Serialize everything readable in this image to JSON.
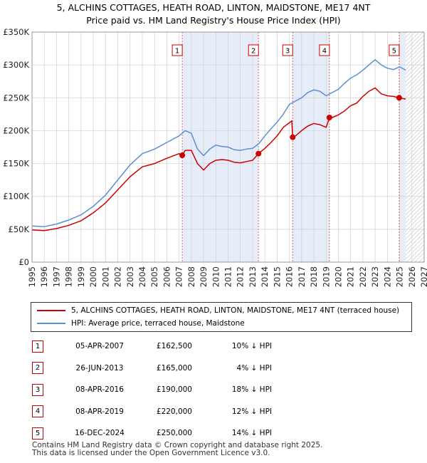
{
  "title_line1": "5, ALCHINS COTTAGES, HEATH ROAD, LINTON, MAIDSTONE, ME17 4NT",
  "title_line2": "Price paid vs. HM Land Registry's House Price Index (HPI)",
  "colors": {
    "property": "#cc0000",
    "hpi": "#5b8fd0",
    "shade": "#e6edf9",
    "grid": "#d0d0d0",
    "marker_line": "#e06666"
  },
  "legend": {
    "property_label": "5, ALCHINS COTTAGES, HEATH ROAD, LINTON, MAIDSTONE, ME17 4NT (terraced house)",
    "hpi_label": "HPI: Average price, terraced house, Maidstone"
  },
  "sales": [
    {
      "num": "1",
      "date": "05-APR-2007",
      "price": "£162,500",
      "hpi": "10% ↓ HPI"
    },
    {
      "num": "2",
      "date": "26-JUN-2013",
      "price": "£165,000",
      "hpi": "4% ↓ HPI"
    },
    {
      "num": "3",
      "date": "08-APR-2016",
      "price": "£190,000",
      "hpi": "18% ↓ HPI"
    },
    {
      "num": "4",
      "date": "08-APR-2019",
      "price": "£220,000",
      "hpi": "12% ↓ HPI"
    },
    {
      "num": "5",
      "date": "16-DEC-2024",
      "price": "£250,000",
      "hpi": "14% ↓ HPI"
    }
  ],
  "footer": {
    "line1": "Contains HM Land Registry data © Crown copyright and database right 2025.",
    "line2": "This data is licensed under the Open Government Licence v3.0."
  },
  "chart_data": {
    "type": "line",
    "title": "5, ALCHINS COTTAGES, HEATH ROAD, LINTON, MAIDSTONE, ME17 4NT — Price paid vs. HM Land Registry's House Price Index (HPI)",
    "xlim": [
      1995,
      2027
    ],
    "ylim": [
      0,
      350000
    ],
    "x_ticks": [
      1995,
      1996,
      1997,
      1998,
      1999,
      2000,
      2001,
      2002,
      2003,
      2004,
      2005,
      2006,
      2007,
      2008,
      2009,
      2010,
      2011,
      2012,
      2013,
      2014,
      2015,
      2016,
      2017,
      2018,
      2019,
      2020,
      2021,
      2022,
      2023,
      2024,
      2025,
      2026,
      2027
    ],
    "y_ticks": [
      0,
      50000,
      100000,
      150000,
      200000,
      250000,
      300000,
      350000
    ],
    "y_tick_labels": [
      "£0",
      "£50K",
      "£100K",
      "£150K",
      "£200K",
      "£250K",
      "£300K",
      "£350K"
    ],
    "shaded_ranges": [
      [
        2007.26,
        2013.48
      ],
      [
        2016.27,
        2019.27
      ],
      [
        2024.96,
        2025.5
      ]
    ],
    "forecast_start": 2025.5,
    "series": [
      {
        "name": "HPI: Average price, terraced house, Maidstone",
        "x": [
          1995.0,
          1996.0,
          1997.0,
          1998.0,
          1999.0,
          2000.0,
          2001.0,
          2002.0,
          2003.0,
          2004.0,
          2005.0,
          2006.0,
          2007.0,
          2007.5,
          2008.0,
          2008.5,
          2009.0,
          2009.5,
          2010.0,
          2010.5,
          2011.0,
          2011.5,
          2012.0,
          2012.5,
          2013.0,
          2013.5,
          2014.0,
          2014.5,
          2015.0,
          2015.5,
          2016.0,
          2016.5,
          2017.0,
          2017.5,
          2018.0,
          2018.5,
          2019.0,
          2019.5,
          2020.0,
          2020.5,
          2021.0,
          2021.5,
          2022.0,
          2022.5,
          2023.0,
          2023.5,
          2024.0,
          2024.5,
          2025.0,
          2025.5
        ],
        "values": [
          55000,
          54000,
          58000,
          64000,
          72000,
          85000,
          102000,
          125000,
          148000,
          165000,
          172000,
          182000,
          192000,
          200000,
          196000,
          172000,
          162000,
          172000,
          178000,
          176000,
          175000,
          171000,
          170000,
          172000,
          173000,
          180000,
          192000,
          203000,
          213000,
          225000,
          240000,
          245000,
          250000,
          258000,
          262000,
          260000,
          253000,
          258000,
          263000,
          272000,
          280000,
          285000,
          292000,
          300000,
          308000,
          300000,
          295000,
          293000,
          297000,
          292000
        ]
      },
      {
        "name": "5, ALCHINS COTTAGES, HEATH ROAD, LINTON, MAIDSTONE, ME17 4NT (terraced house)",
        "x": [
          1995.0,
          1996.0,
          1997.0,
          1998.0,
          1999.0,
          2000.0,
          2001.0,
          2002.0,
          2003.0,
          2004.0,
          2005.0,
          2006.0,
          2007.0,
          2007.26,
          2007.5,
          2008.0,
          2008.5,
          2009.0,
          2009.5,
          2010.0,
          2010.5,
          2011.0,
          2011.5,
          2012.0,
          2012.5,
          2013.0,
          2013.48,
          2014.0,
          2014.5,
          2015.0,
          2015.5,
          2016.0,
          2016.2,
          2016.27,
          2016.5,
          2017.0,
          2017.5,
          2018.0,
          2018.5,
          2019.0,
          2019.27,
          2019.5,
          2020.0,
          2020.5,
          2021.0,
          2021.5,
          2022.0,
          2022.5,
          2023.0,
          2023.5,
          2024.0,
          2024.5,
          2024.96,
          2025.5
        ],
        "values": [
          49000,
          48000,
          51000,
          56000,
          63000,
          75000,
          90000,
          110000,
          130000,
          145000,
          150000,
          158000,
          165000,
          162500,
          170000,
          170000,
          150000,
          140000,
          150000,
          155000,
          156000,
          155000,
          152000,
          151000,
          153000,
          155000,
          165000,
          173000,
          182000,
          192000,
          205000,
          212000,
          215000,
          190000,
          192000,
          200000,
          207000,
          211000,
          209000,
          205000,
          220000,
          220000,
          224000,
          230000,
          238000,
          242000,
          252000,
          260000,
          265000,
          256000,
          253000,
          252000,
          250000,
          248000
        ]
      }
    ],
    "sale_points": [
      {
        "label": "1",
        "x": 2007.26,
        "value": 162500
      },
      {
        "label": "2",
        "x": 2013.48,
        "value": 165000
      },
      {
        "label": "3",
        "x": 2016.27,
        "value": 190000
      },
      {
        "label": "4",
        "x": 2019.27,
        "value": 220000
      },
      {
        "label": "5",
        "x": 2024.96,
        "value": 250000
      }
    ]
  }
}
